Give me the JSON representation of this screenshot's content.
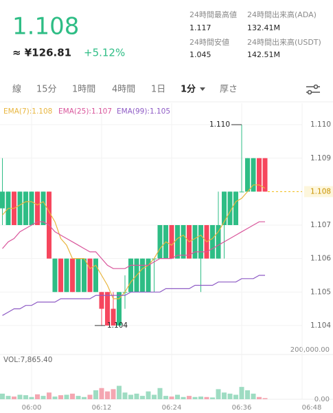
{
  "header": {
    "price": "1.108",
    "fiat": "≈ ¥126.81",
    "change": "+5.12%",
    "stats": [
      {
        "label": "24時間最高値",
        "value": "1.117"
      },
      {
        "label": "24時間出来高(ADA)",
        "value": "132.41M"
      },
      {
        "label": "24時間安値",
        "value": "1.045"
      },
      {
        "label": "24時間出来高(USDT)",
        "value": "142.51M"
      }
    ]
  },
  "tabs": [
    "線",
    "15分",
    "1時間",
    "4時間",
    "1日",
    "1分",
    "厚さ"
  ],
  "active_tab": 5,
  "chart_data": [
    {
      "type": "candlestick",
      "up_color": "#2ebd85",
      "down_color": "#f6465d",
      "categories": [
        null,
        null,
        null,
        null,
        null,
        "06:00",
        null,
        null,
        null,
        null,
        null,
        null,
        null,
        null,
        null,
        null,
        null,
        "06:12",
        null,
        null,
        null,
        null,
        null,
        null,
        null,
        null,
        null,
        null,
        null,
        "06:24",
        null,
        null,
        null,
        null,
        null,
        null,
        null,
        null,
        null,
        null,
        null,
        "06:36",
        null,
        null,
        null,
        null,
        null,
        null,
        null,
        null,
        null,
        null,
        null,
        "06:48"
      ],
      "open": [
        1.1075,
        1.107,
        1.108,
        1.107,
        1.107,
        1.107,
        1.108,
        1.107,
        1.108,
        1.105,
        1.106,
        1.105,
        1.106,
        1.105,
        1.105,
        1.106,
        1.105,
        1.105,
        1.105,
        1.1045,
        1.104,
        1.105,
        1.105,
        1.105,
        1.105,
        1.105,
        1.106,
        1.106,
        1.106,
        1.107,
        1.106,
        1.106,
        1.107,
        1.106,
        1.106,
        1.107,
        1.106,
        1.106,
        1.107,
        1.107,
        1.107,
        1.108,
        1.108,
        1.108,
        1.109,
        1.109,
        null,
        null,
        null,
        null,
        null,
        null,
        null,
        null
      ],
      "high": [
        1.109,
        1.108,
        1.108,
        1.108,
        1.108,
        1.108,
        1.108,
        1.108,
        1.108,
        1.106,
        1.106,
        1.106,
        1.106,
        1.106,
        1.106,
        1.106,
        1.106,
        1.105,
        1.105,
        1.105,
        1.105,
        1.1055,
        1.106,
        1.106,
        1.106,
        1.106,
        1.106,
        1.107,
        1.107,
        1.107,
        1.107,
        1.107,
        1.107,
        1.107,
        1.107,
        1.107,
        1.107,
        1.108,
        1.108,
        1.108,
        1.108,
        1.11,
        1.109,
        1.109,
        1.109,
        1.109,
        null,
        null,
        null,
        null,
        null,
        null,
        null,
        null
      ],
      "low": [
        1.107,
        1.107,
        1.107,
        1.107,
        1.107,
        1.107,
        1.107,
        1.107,
        1.106,
        1.105,
        1.105,
        1.105,
        1.105,
        1.105,
        1.105,
        1.105,
        1.105,
        1.104,
        1.104,
        1.104,
        1.104,
        1.1045,
        1.105,
        1.105,
        1.105,
        1.105,
        1.105,
        1.106,
        1.106,
        1.106,
        1.106,
        1.106,
        1.106,
        1.106,
        1.105,
        1.106,
        1.106,
        1.106,
        1.106,
        1.107,
        1.107,
        1.108,
        1.108,
        1.108,
        1.108,
        1.108,
        null,
        null,
        null,
        null,
        null,
        null,
        null,
        null
      ],
      "close": [
        1.108,
        1.108,
        1.107,
        1.108,
        1.108,
        1.108,
        1.107,
        1.108,
        1.106,
        1.106,
        1.105,
        1.106,
        1.105,
        1.106,
        1.106,
        1.105,
        1.106,
        1.1045,
        1.104,
        1.104,
        1.105,
        1.105,
        1.106,
        1.106,
        1.106,
        1.106,
        1.106,
        1.107,
        1.107,
        1.106,
        1.107,
        1.107,
        1.106,
        1.107,
        1.107,
        1.106,
        1.107,
        1.107,
        1.108,
        1.108,
        1.108,
        1.108,
        1.109,
        1.109,
        1.108,
        1.108,
        null,
        null,
        null,
        null,
        null,
        null,
        null,
        null
      ],
      "series": [
        {
          "name": "EMA(7):1.108",
          "color": "#e8b53d",
          "values": [
            1.1073,
            1.1075,
            1.1075,
            1.1076,
            1.1077,
            1.1077,
            1.1076,
            1.1077,
            1.1074,
            1.1071,
            1.1066,
            1.1064,
            1.106,
            1.106,
            1.106,
            1.1057,
            1.1058,
            1.1055,
            1.1052,
            1.1048,
            1.1048,
            1.105,
            1.1053,
            1.1055,
            1.1057,
            1.1058,
            1.106,
            1.1063,
            1.1065,
            1.1064,
            1.1066,
            1.1067,
            1.1065,
            1.1066,
            1.1067,
            1.1065,
            1.1066,
            1.1068,
            1.1071,
            1.1074,
            1.1077,
            1.1078,
            1.108,
            1.1082,
            1.1082,
            1.1081,
            null,
            null,
            null,
            null,
            null,
            null,
            null,
            null
          ]
        },
        {
          "name": "EMA(25):1.107",
          "color": "#d9559b",
          "values": [
            1.1063,
            1.1065,
            1.1066,
            1.1068,
            1.1069,
            1.107,
            1.1071,
            1.1071,
            1.107,
            1.1068,
            1.1067,
            1.1066,
            1.1065,
            1.1064,
            1.1063,
            1.1062,
            1.1062,
            1.106,
            1.1058,
            1.1057,
            1.1057,
            1.1057,
            1.1058,
            1.1058,
            1.1058,
            1.1058,
            1.1059,
            1.106,
            1.106,
            1.106,
            1.1061,
            1.1061,
            1.1061,
            1.1062,
            1.1062,
            1.1062,
            1.1063,
            1.1064,
            1.1065,
            1.1066,
            1.1067,
            1.1068,
            1.1069,
            1.107,
            1.1071,
            1.1071,
            null,
            null,
            null,
            null,
            null,
            null,
            null,
            null
          ]
        },
        {
          "name": "EMA(99):1.105",
          "color": "#8e5bc5",
          "values": [
            1.1043,
            1.1044,
            1.1045,
            1.1045,
            1.1046,
            1.1046,
            1.1047,
            1.1047,
            1.1047,
            1.1047,
            1.1048,
            1.1048,
            1.1048,
            1.1048,
            1.1048,
            1.1048,
            1.1049,
            1.1049,
            1.1049,
            1.1049,
            1.1049,
            1.1049,
            1.105,
            1.105,
            1.105,
            1.105,
            1.105,
            1.105,
            1.1051,
            1.1051,
            1.1051,
            1.1051,
            1.1051,
            1.1052,
            1.1052,
            1.1052,
            1.1052,
            1.1053,
            1.1053,
            1.1053,
            1.1053,
            1.1054,
            1.1054,
            1.1054,
            1.1055,
            1.1055,
            null,
            null,
            null,
            null,
            null,
            null,
            null,
            null
          ]
        }
      ],
      "ylim": [
        1.10334,
        1.11064
      ],
      "yticks": [
        {
          "value": 1.11,
          "label": "1.110"
        },
        1.109,
        1.107,
        1.106,
        1.105,
        1.104
      ],
      "last_price": 1.108,
      "high_label": {
        "value": 1.11,
        "label": "1.110"
      },
      "low_label": 1.104,
      "grid": true
    },
    {
      "type": "bar",
      "title": "VOL:7,865.40",
      "values": [
        25000,
        15000,
        12000,
        20000,
        18000,
        10000,
        22000,
        15000,
        30000,
        12000,
        18000,
        20000,
        25000,
        15000,
        10000,
        20000,
        40000,
        50000,
        35000,
        45000,
        60000,
        30000,
        20000,
        25000,
        15000,
        35000,
        20000,
        50000,
        15000,
        12000,
        20000,
        10000,
        15000,
        10000,
        12000,
        10000,
        8000,
        45000,
        30000,
        25000,
        20000,
        55000,
        40000,
        25000,
        10000,
        5000,
        null,
        null,
        null,
        null,
        null,
        null,
        null,
        null
      ],
      "ylim": [
        0,
        200000
      ],
      "yticks": [
        {
          "value": 0,
          "label": "0.00"
        },
        {
          "value": 200000,
          "label": "200,000.00"
        }
      ],
      "grid": true
    }
  ]
}
